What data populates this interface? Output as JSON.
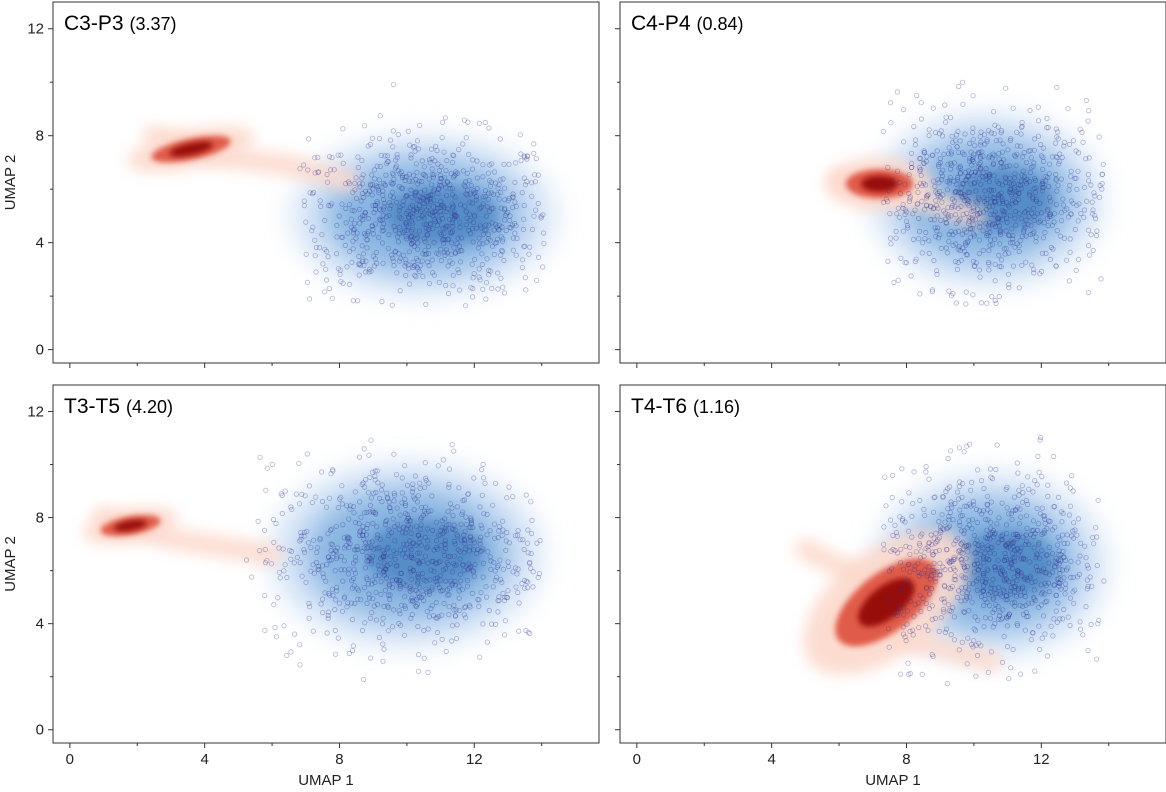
{
  "chart_data": [
    {
      "type": "scatter",
      "title": "C3-P3",
      "subtitle": "(3.37)",
      "xlabel": "",
      "ylabel": "UMAP 2",
      "xlim": [
        -0.5,
        15.7
      ],
      "ylim": [
        -0.5,
        13
      ],
      "xticks": [
        0,
        4,
        8,
        12
      ],
      "xticks_labels": [
        "",
        "",
        "",
        ""
      ],
      "yticks": [
        0,
        4,
        8,
        12
      ],
      "yticks_labels": [
        "0",
        "4",
        "8",
        "12"
      ],
      "red_cluster": {
        "x": 3.6,
        "y": 7.5,
        "sx": 1.2,
        "sy": 0.4,
        "angle": -12
      },
      "red_tail": [
        [
          2.5,
          8.0
        ],
        [
          4.5,
          7.2
        ],
        [
          6.5,
          6.9
        ],
        [
          8.3,
          6.3
        ]
      ],
      "blue_cluster": {
        "x": 10.5,
        "y": 5.0,
        "sx": 3.4,
        "sy": 2.5
      },
      "blue_points_extent": {
        "x": [
          6.8,
          14.1
        ],
        "y": [
          1.6,
          10.1
        ]
      }
    },
    {
      "type": "scatter",
      "title": "C4-P4",
      "subtitle": "(0.84)",
      "xlabel": "",
      "ylabel": "",
      "xlim": [
        -0.5,
        15.7
      ],
      "ylim": [
        -0.5,
        13
      ],
      "xticks": [
        0,
        4,
        8,
        12
      ],
      "xticks_labels": [
        "",
        "",
        "",
        ""
      ],
      "yticks": [
        0,
        4,
        8,
        12
      ],
      "yticks_labels": [
        "",
        "",
        "",
        ""
      ],
      "red_cluster": {
        "x": 7.2,
        "y": 6.2,
        "sx": 1.0,
        "sy": 0.55,
        "angle": 0
      },
      "red_tail": [
        [
          6.0,
          6.3
        ],
        [
          8.5,
          5.6
        ],
        [
          10.0,
          5.0
        ]
      ],
      "blue_cluster": {
        "x": 10.4,
        "y": 5.6,
        "sx": 3.0,
        "sy": 2.7
      },
      "blue_points_extent": {
        "x": [
          7.3,
          13.9
        ],
        "y": [
          1.6,
          10.1
        ]
      }
    },
    {
      "type": "scatter",
      "title": "T3-T5",
      "subtitle": "(4.20)",
      "xlabel": "UMAP 1",
      "ylabel": "UMAP 2",
      "xlim": [
        -0.5,
        15.7
      ],
      "ylim": [
        -0.5,
        13
      ],
      "xticks": [
        0,
        4,
        8,
        12
      ],
      "xticks_labels": [
        "0",
        "4",
        "8",
        "12"
      ],
      "yticks": [
        0,
        4,
        8,
        12
      ],
      "yticks_labels": [
        "0",
        "4",
        "8",
        "12"
      ],
      "red_cluster": {
        "x": 1.8,
        "y": 7.7,
        "sx": 0.9,
        "sy": 0.35,
        "angle": -10
      },
      "red_tail": [
        [
          1.0,
          8.0
        ],
        [
          3.0,
          7.2
        ],
        [
          5.0,
          6.8
        ],
        [
          6.0,
          6.6
        ]
      ],
      "blue_cluster": {
        "x": 10.0,
        "y": 6.6,
        "sx": 3.5,
        "sy": 2.9
      },
      "blue_points_extent": {
        "x": [
          5.2,
          14.0
        ],
        "y": [
          1.6,
          11.2
        ]
      }
    },
    {
      "type": "scatter",
      "title": "T4-T6",
      "subtitle": "(1.16)",
      "xlabel": "UMAP 1",
      "ylabel": "",
      "xlim": [
        -0.5,
        15.7
      ],
      "ylim": [
        -0.5,
        13
      ],
      "xticks": [
        0,
        4,
        8,
        12
      ],
      "xticks_labels": [
        "0",
        "4",
        "8",
        "12"
      ],
      "yticks": [
        0,
        4,
        8,
        12
      ],
      "yticks_labels": [
        "",
        "",
        "",
        ""
      ],
      "red_cluster": {
        "x": 7.4,
        "y": 4.8,
        "sx": 1.8,
        "sy": 1.1,
        "angle": -38
      },
      "red_tail": [
        [
          5.0,
          6.8
        ],
        [
          7.0,
          5.5
        ],
        [
          8.0,
          3.4
        ],
        [
          10.5,
          2.6
        ]
      ],
      "blue_cluster": {
        "x": 10.5,
        "y": 6.2,
        "sx": 3.0,
        "sy": 2.9
      },
      "blue_points_extent": {
        "x": [
          7.3,
          14.0
        ],
        "y": [
          1.6,
          11.2
        ]
      }
    }
  ],
  "colors": {
    "red_dark": "#8b0000",
    "red_mid": "#d7301f",
    "red_light": "#fcd9cc",
    "blue_dark": "#1f5fa8",
    "blue_mid": "#4a8fd0",
    "blue_light": "#cfe0f5",
    "point_edge": "#2b2f8f"
  }
}
